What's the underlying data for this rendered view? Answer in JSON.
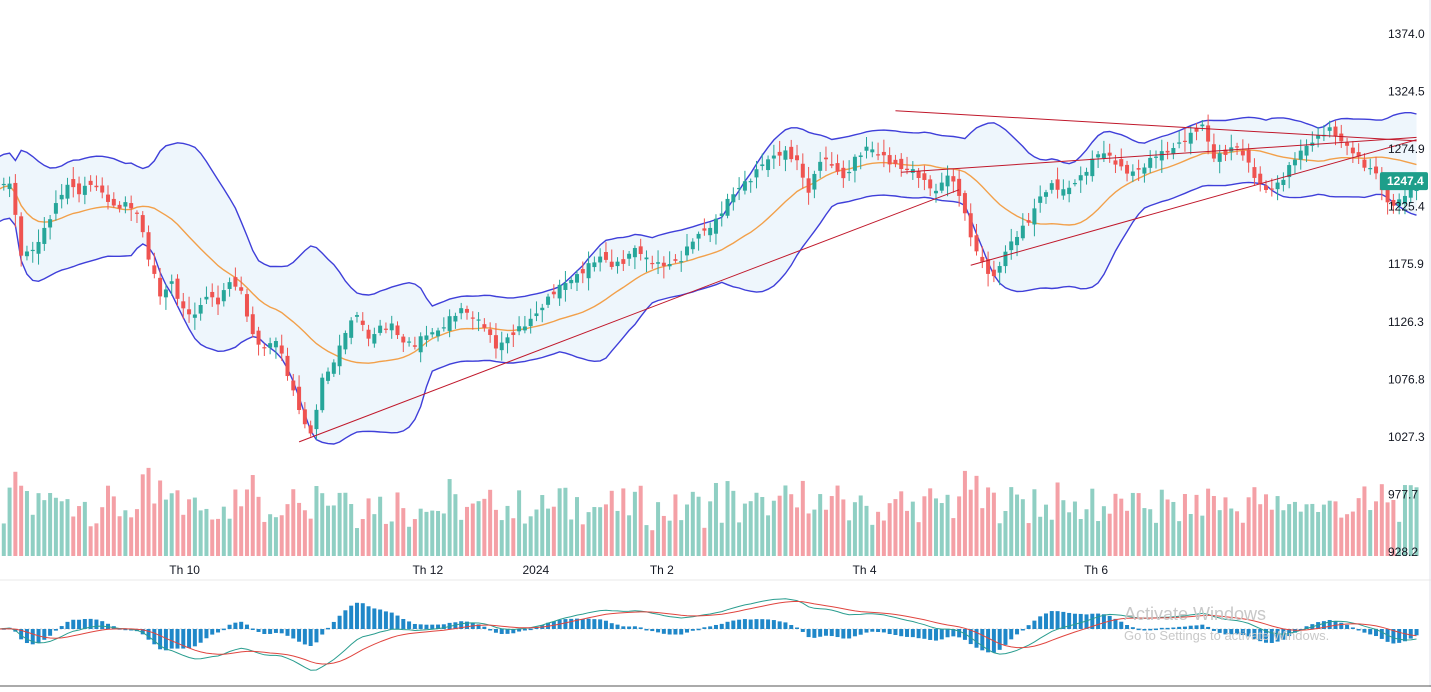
{
  "colors": {
    "up": "#26a69a",
    "down": "#ef5350",
    "volume_up": "#8fcfc3",
    "volume_down": "#f4a0a6",
    "band": "#3f3fd9",
    "band_fill": "#eef6fc",
    "ma": "#f2a04a",
    "trendline": "#c0182b",
    "macd": "#2a9d8f",
    "signal": "#e0453f",
    "histogram": "#1f87c8",
    "last_price_badge": "#1e9e8a"
  },
  "chart_data": {
    "type": "candlestick",
    "title": "",
    "price_axis": {
      "ylim": [
        928.2,
        1374.0
      ],
      "ticks": [
        "1374.0",
        "1324.5",
        "1274.9",
        "1225.4",
        "1175.9",
        "1126.3",
        "1076.8",
        "1027.3",
        "977.7",
        "928.2"
      ]
    },
    "time_axis": {
      "labels": [
        "Th 10",
        "Th 12",
        "2024",
        "Th 2",
        "Th 4",
        "Th 6"
      ],
      "label_bars": [
        32,
        74,
        93,
        115,
        150,
        190
      ]
    },
    "last_price": "1247.4",
    "close_anchors": [
      [
        0,
        1240
      ],
      [
        2,
        1245
      ],
      [
        4,
        1185
      ],
      [
        6,
        1190
      ],
      [
        8,
        1205
      ],
      [
        10,
        1225
      ],
      [
        12,
        1245
      ],
      [
        14,
        1240
      ],
      [
        16,
        1245
      ],
      [
        18,
        1235
      ],
      [
        20,
        1225
      ],
      [
        22,
        1230
      ],
      [
        24,
        1220
      ],
      [
        26,
        1180
      ],
      [
        28,
        1150
      ],
      [
        30,
        1162
      ],
      [
        32,
        1135
      ],
      [
        34,
        1130
      ],
      [
        36,
        1150
      ],
      [
        38,
        1145
      ],
      [
        40,
        1160
      ],
      [
        42,
        1150
      ],
      [
        44,
        1115
      ],
      [
        46,
        1105
      ],
      [
        48,
        1110
      ],
      [
        50,
        1080
      ],
      [
        52,
        1052
      ],
      [
        54,
        1030
      ],
      [
        56,
        1075
      ],
      [
        58,
        1090
      ],
      [
        60,
        1120
      ],
      [
        62,
        1135
      ],
      [
        64,
        1110
      ],
      [
        66,
        1120
      ],
      [
        68,
        1125
      ],
      [
        70,
        1110
      ],
      [
        72,
        1105
      ],
      [
        74,
        1115
      ],
      [
        76,
        1120
      ],
      [
        78,
        1130
      ],
      [
        80,
        1135
      ],
      [
        82,
        1130
      ],
      [
        84,
        1125
      ],
      [
        86,
        1105
      ],
      [
        88,
        1110
      ],
      [
        90,
        1120
      ],
      [
        92,
        1130
      ],
      [
        94,
        1140
      ],
      [
        96,
        1150
      ],
      [
        98,
        1160
      ],
      [
        100,
        1168
      ],
      [
        102,
        1175
      ],
      [
        104,
        1180
      ],
      [
        106,
        1175
      ],
      [
        108,
        1180
      ],
      [
        110,
        1190
      ],
      [
        112,
        1178
      ],
      [
        114,
        1176
      ],
      [
        116,
        1178
      ],
      [
        118,
        1180
      ],
      [
        120,
        1195
      ],
      [
        122,
        1205
      ],
      [
        124,
        1215
      ],
      [
        126,
        1230
      ],
      [
        128,
        1240
      ],
      [
        130,
        1250
      ],
      [
        132,
        1265
      ],
      [
        134,
        1268
      ],
      [
        136,
        1270
      ],
      [
        138,
        1265
      ],
      [
        140,
        1240
      ],
      [
        142,
        1265
      ],
      [
        144,
        1260
      ],
      [
        146,
        1250
      ],
      [
        148,
        1268
      ],
      [
        150,
        1275
      ],
      [
        152,
        1270
      ],
      [
        154,
        1265
      ],
      [
        156,
        1260
      ],
      [
        158,
        1255
      ],
      [
        160,
        1245
      ],
      [
        162,
        1240
      ],
      [
        164,
        1255
      ],
      [
        166,
        1235
      ],
      [
        168,
        1198
      ],
      [
        170,
        1178
      ],
      [
        172,
        1165
      ],
      [
        174,
        1185
      ],
      [
        176,
        1200
      ],
      [
        178,
        1215
      ],
      [
        180,
        1235
      ],
      [
        182,
        1242
      ],
      [
        184,
        1238
      ],
      [
        186,
        1248
      ],
      [
        188,
        1258
      ],
      [
        190,
        1270
      ],
      [
        192,
        1268
      ],
      [
        194,
        1260
      ],
      [
        196,
        1255
      ],
      [
        198,
        1258
      ],
      [
        200,
        1270
      ],
      [
        202,
        1275
      ],
      [
        204,
        1280
      ],
      [
        206,
        1285
      ],
      [
        208,
        1295
      ],
      [
        210,
        1270
      ],
      [
        212,
        1272
      ],
      [
        214,
        1275
      ],
      [
        216,
        1262
      ],
      [
        218,
        1245
      ],
      [
        220,
        1240
      ],
      [
        222,
        1248
      ],
      [
        224,
        1268
      ],
      [
        226,
        1280
      ],
      [
        228,
        1285
      ],
      [
        230,
        1290
      ],
      [
        232,
        1282
      ],
      [
        234,
        1275
      ],
      [
        236,
        1260
      ],
      [
        238,
        1252
      ],
      [
        240,
        1228
      ],
      [
        242,
        1232
      ],
      [
        244,
        1240
      ],
      [
        245,
        1247.4
      ]
    ],
    "trendlines": [
      {
        "name": "lower-channel-1",
        "from": [
          52,
          1023
        ],
        "to": [
          166,
          1240
        ]
      },
      {
        "name": "upper-channel-2",
        "from": [
          168,
          1175
        ],
        "to": [
          245,
          1283
        ]
      },
      {
        "name": "lower-channel-2",
        "from": [
          156,
          1255
        ],
        "to": [
          245,
          1285
        ]
      },
      {
        "name": "resistance",
        "from": [
          155,
          1308
        ],
        "to": [
          245,
          1282
        ]
      }
    ],
    "bollinger": {
      "period": 20,
      "stddev": 2
    },
    "macd": {
      "fast": 12,
      "slow": 26,
      "signal": 9
    }
  },
  "watermark": {
    "title": "Activate Windows",
    "subtitle": "Go to Settings to activate Windows."
  }
}
